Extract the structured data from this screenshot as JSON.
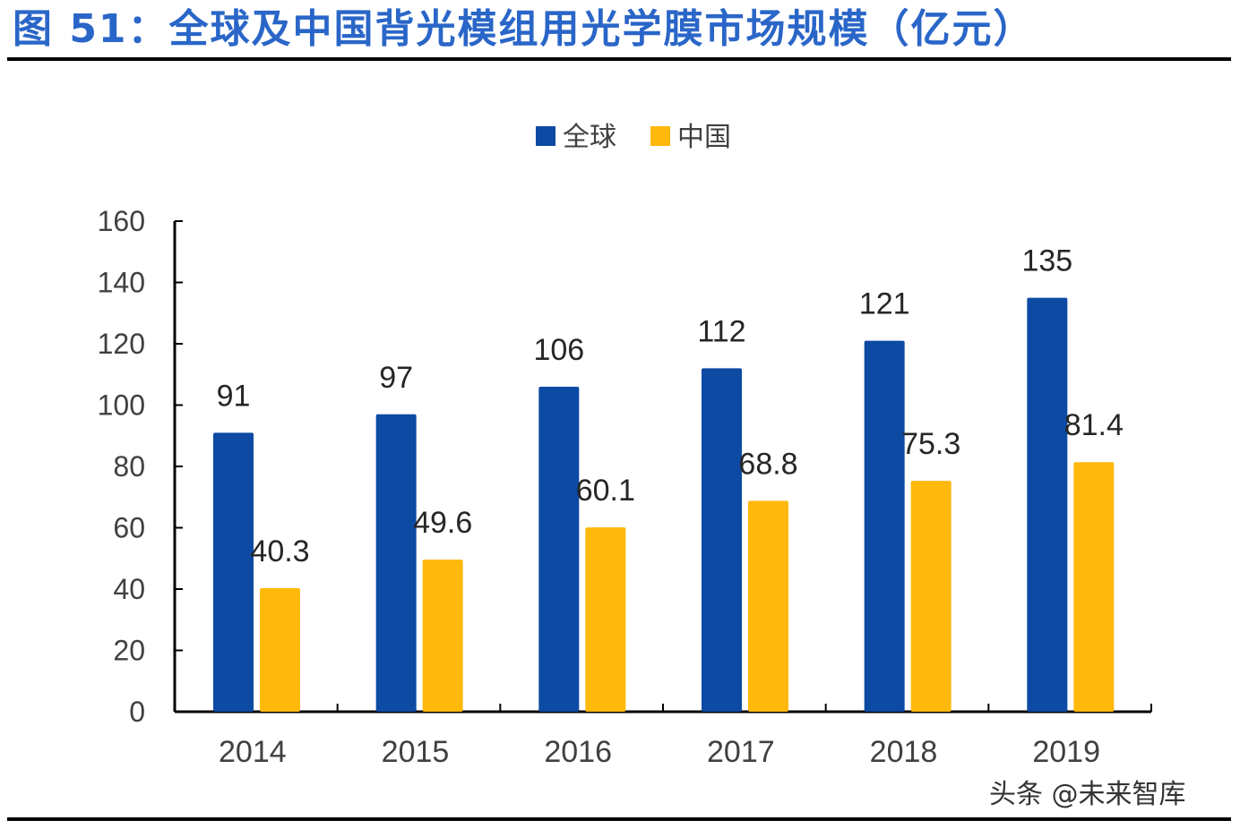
{
  "title": "图 51：全球及中国背光模组用光学膜市场规模（亿元）",
  "watermark": "头条 @未来智库",
  "chart_data": {
    "type": "bar",
    "title": "图 51：全球及中国背光模组用光学膜市场规模（亿元）",
    "categories": [
      "2014",
      "2015",
      "2016",
      "2017",
      "2018",
      "2019"
    ],
    "series": [
      {
        "name": "全球",
        "color": "#0c4aa3",
        "values": [
          91,
          97,
          106,
          112,
          121,
          135
        ]
      },
      {
        "name": "中国",
        "color": "#ffb80c",
        "values": [
          40.3,
          49.6,
          60.1,
          68.8,
          75.3,
          81.4
        ]
      }
    ],
    "ylim": [
      0,
      160
    ],
    "yticks": [
      0,
      20,
      40,
      60,
      80,
      100,
      120,
      140,
      160
    ],
    "grid": false,
    "legend": "top-center",
    "data_labels": true
  }
}
